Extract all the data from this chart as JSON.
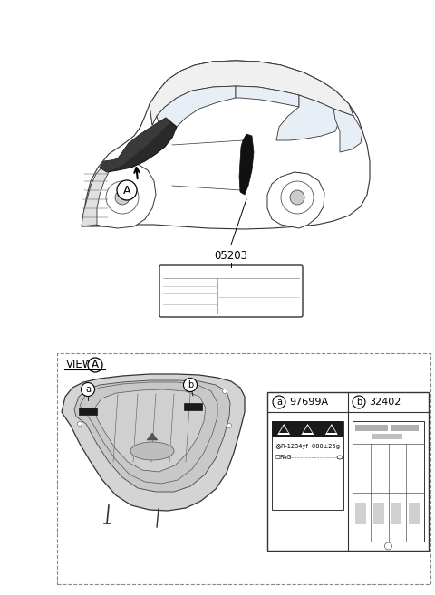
{
  "bg_color": "#ffffff",
  "part_num_05203": "05203",
  "part_a": "97699A",
  "part_b": "32402",
  "ac_label_text1": "R-1234yf  080±25g",
  "ac_label_text2": "PAG",
  "circle_a": "a",
  "circle_b": "b",
  "view_label": "VIEW",
  "circle_A": "A",
  "figsize": [
    4.8,
    6.57
  ],
  "dpi": 100
}
